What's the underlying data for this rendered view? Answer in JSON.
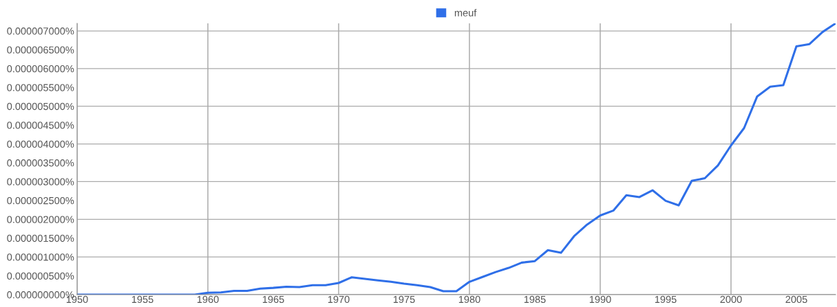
{
  "chart_data": {
    "type": "line",
    "x": [
      1950,
      1951,
      1952,
      1953,
      1954,
      1955,
      1956,
      1957,
      1958,
      1959,
      1960,
      1961,
      1962,
      1963,
      1964,
      1965,
      1966,
      1967,
      1968,
      1969,
      1970,
      1971,
      1972,
      1973,
      1974,
      1975,
      1976,
      1977,
      1978,
      1979,
      1980,
      1981,
      1982,
      1983,
      1984,
      1985,
      1986,
      1987,
      1988,
      1989,
      1990,
      1991,
      1992,
      1993,
      1994,
      1995,
      1996,
      1997,
      1998,
      1999,
      2000,
      2001,
      2002,
      2003,
      2004,
      2005,
      2006,
      2007,
      2008
    ],
    "series": [
      {
        "name": "meuf",
        "color": "#2f6fe8",
        "values": [
          0,
          0,
          0,
          0,
          0,
          0,
          0,
          0,
          0,
          0,
          5e-08,
          6e-08,
          1e-07,
          1e-07,
          1.6e-07,
          1.8e-07,
          2.1e-07,
          2e-07,
          2.5e-07,
          2.5e-07,
          3.1e-07,
          4.6e-07,
          4.2e-07,
          3.8e-07,
          3.4e-07,
          2.9e-07,
          2.5e-07,
          2e-07,
          9e-08,
          9e-08,
          3.4e-07,
          4.7e-07,
          6e-07,
          7.1e-07,
          8.5e-07,
          8.9e-07,
          1.18e-06,
          1.11e-06,
          1.55e-06,
          1.86e-06,
          2.1e-06,
          2.23e-06,
          2.64e-06,
          2.59e-06,
          2.77e-06,
          2.49e-06,
          2.37e-06,
          3.02e-06,
          3.09e-06,
          3.43e-06,
          3.96e-06,
          4.42e-06,
          5.26e-06,
          5.52e-06,
          5.56e-06,
          6.59e-06,
          6.65e-06,
          6.97e-06,
          7.2e-06
        ]
      }
    ],
    "xlim": [
      1950,
      2008
    ],
    "xticks": [
      1950,
      1955,
      1960,
      1965,
      1970,
      1975,
      1980,
      1985,
      1990,
      1995,
      2000,
      2005
    ],
    "ylim": [
      0,
      7.2e-06
    ],
    "yticks": [
      {
        "value": 0,
        "label": "0.000000000%"
      },
      {
        "value": 5e-07,
        "label": "0.000000500%"
      },
      {
        "value": 1e-06,
        "label": "0.000001000%"
      },
      {
        "value": 1.5e-06,
        "label": "0.000001500%"
      },
      {
        "value": 2e-06,
        "label": "0.000002000%"
      },
      {
        "value": 2.5e-06,
        "label": "0.000002500%"
      },
      {
        "value": 3e-06,
        "label": "0.000003000%"
      },
      {
        "value": 3.5e-06,
        "label": "0.000003500%"
      },
      {
        "value": 4e-06,
        "label": "0.000004000%"
      },
      {
        "value": 4.5e-06,
        "label": "0.000004500%"
      },
      {
        "value": 5e-06,
        "label": "0.000005000%"
      },
      {
        "value": 5.5e-06,
        "label": "0.000005500%"
      },
      {
        "value": 6e-06,
        "label": "0.000006000%"
      },
      {
        "value": 6.5e-06,
        "label": "0.000006500%"
      },
      {
        "value": 7e-06,
        "label": "0.000007000%"
      }
    ],
    "grid": true,
    "legend": "top",
    "marker": "none",
    "line_style": "solid"
  }
}
